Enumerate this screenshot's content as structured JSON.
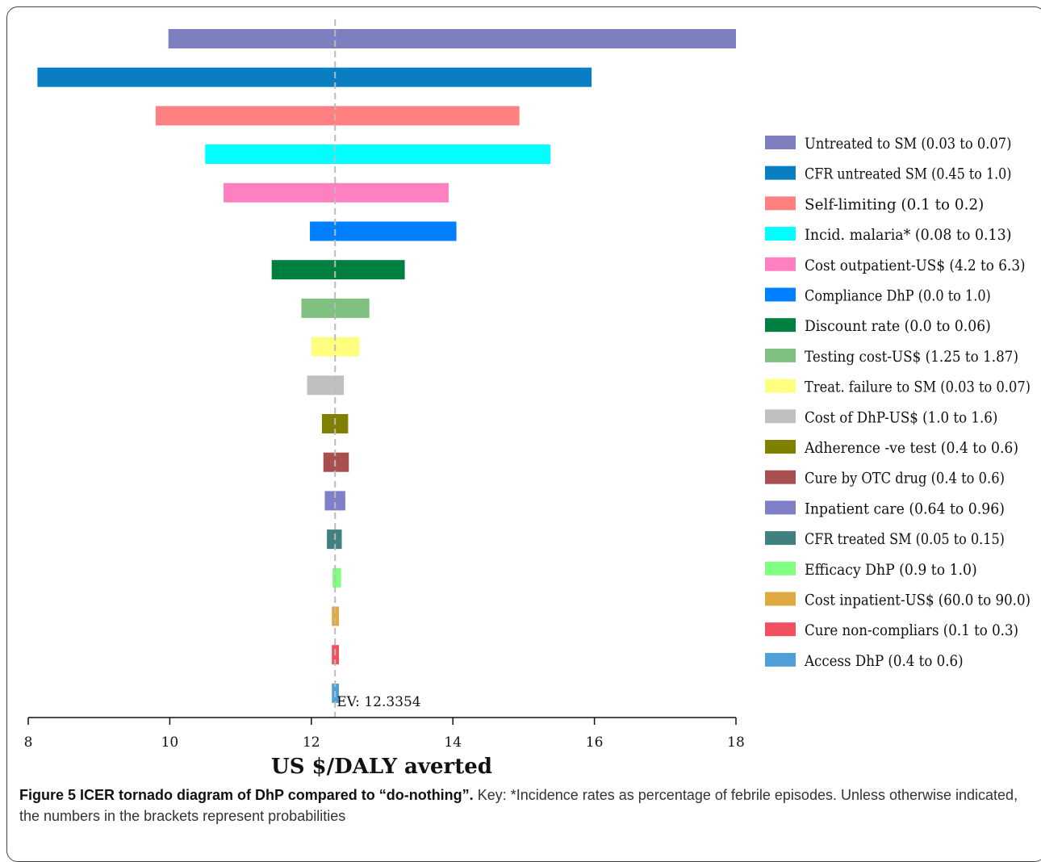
{
  "chart_data": {
    "type": "bar",
    "orientation": "horizontal",
    "subtype": "tornado",
    "xlabel": "US $/DALY averted",
    "xlim": [
      8,
      18
    ],
    "xticks": [
      8,
      10,
      12,
      14,
      16,
      18
    ],
    "ev_label": "EV: 12.3354",
    "ev_value": 12.3354,
    "legend_position": "right",
    "series": [
      {
        "name": "Untreated to SM (0.03 to 0.07)",
        "low": 9.98,
        "high": 18.0,
        "color": "#7F7FC0"
      },
      {
        "name": "CFR untreated SM (0.45 to 1.0)",
        "low": 8.13,
        "high": 15.96,
        "color": "#0A7EC2"
      },
      {
        "name": "Self-limiting (0.1 to 0.2)",
        "low": 9.8,
        "high": 14.94,
        "color": "#FF8080"
      },
      {
        "name": "Incid. malaria* (0.08 to 0.13)",
        "low": 10.5,
        "high": 15.38,
        "color": "#00FFFF"
      },
      {
        "name": "Cost outpatient-US$ (4.2 to 6.3)",
        "low": 10.76,
        "high": 13.94,
        "color": "#FF80C0"
      },
      {
        "name": "Compliance DhP (0.0 to 1.0)",
        "low": 11.98,
        "high": 14.05,
        "color": "#0080FF"
      },
      {
        "name": "Discount rate (0.0 to 0.06)",
        "low": 11.44,
        "high": 13.32,
        "color": "#008040"
      },
      {
        "name": "Testing cost-US$ (1.25 to 1.87)",
        "low": 11.86,
        "high": 12.82,
        "color": "#80C080"
      },
      {
        "name": "Treat. failure to SM (0.03 to 0.07)",
        "low": 12.0,
        "high": 12.68,
        "color": "#FFFF80"
      },
      {
        "name": "Cost of DhP-US$ (1.0 to 1.6)",
        "low": 11.94,
        "high": 12.46,
        "color": "#C0C0C0"
      },
      {
        "name": "Adherence -ve test (0.4 to 0.6)",
        "low": 12.15,
        "high": 12.52,
        "color": "#808000"
      },
      {
        "name": "Cure by OTC drug (0.4 to 0.6)",
        "low": 12.17,
        "high": 12.53,
        "color": "#A85050"
      },
      {
        "name": "Inpatient care (0.64 to 0.96)",
        "low": 12.19,
        "high": 12.48,
        "color": "#8080C8"
      },
      {
        "name": "CFR treated SM (0.05 to 0.15)",
        "low": 12.22,
        "high": 12.43,
        "color": "#408080"
      },
      {
        "name": "Efficacy DhP (0.9 to 1.0)",
        "low": 12.3,
        "high": 12.42,
        "color": "#80FF80"
      },
      {
        "name": "Cost inpatient-US$ (60.0 to 90.0)",
        "low": 12.29,
        "high": 12.39,
        "color": "#E0A840"
      },
      {
        "name": "Cure non-compliars (0.1 to 0.3)",
        "low": 12.29,
        "high": 12.39,
        "color": "#F05060"
      },
      {
        "name": "Access DhP (0.4 to 0.6)",
        "low": 12.29,
        "high": 12.39,
        "color": "#50A0D8"
      }
    ]
  },
  "caption": {
    "title": "Figure 5 ICER tornado diagram of DhP compared to “do-nothing”.",
    "body": " Key: *Incidence rates as percentage of febrile episodes. Unless otherwise indicated, the numbers in the brackets represent probabilities"
  }
}
